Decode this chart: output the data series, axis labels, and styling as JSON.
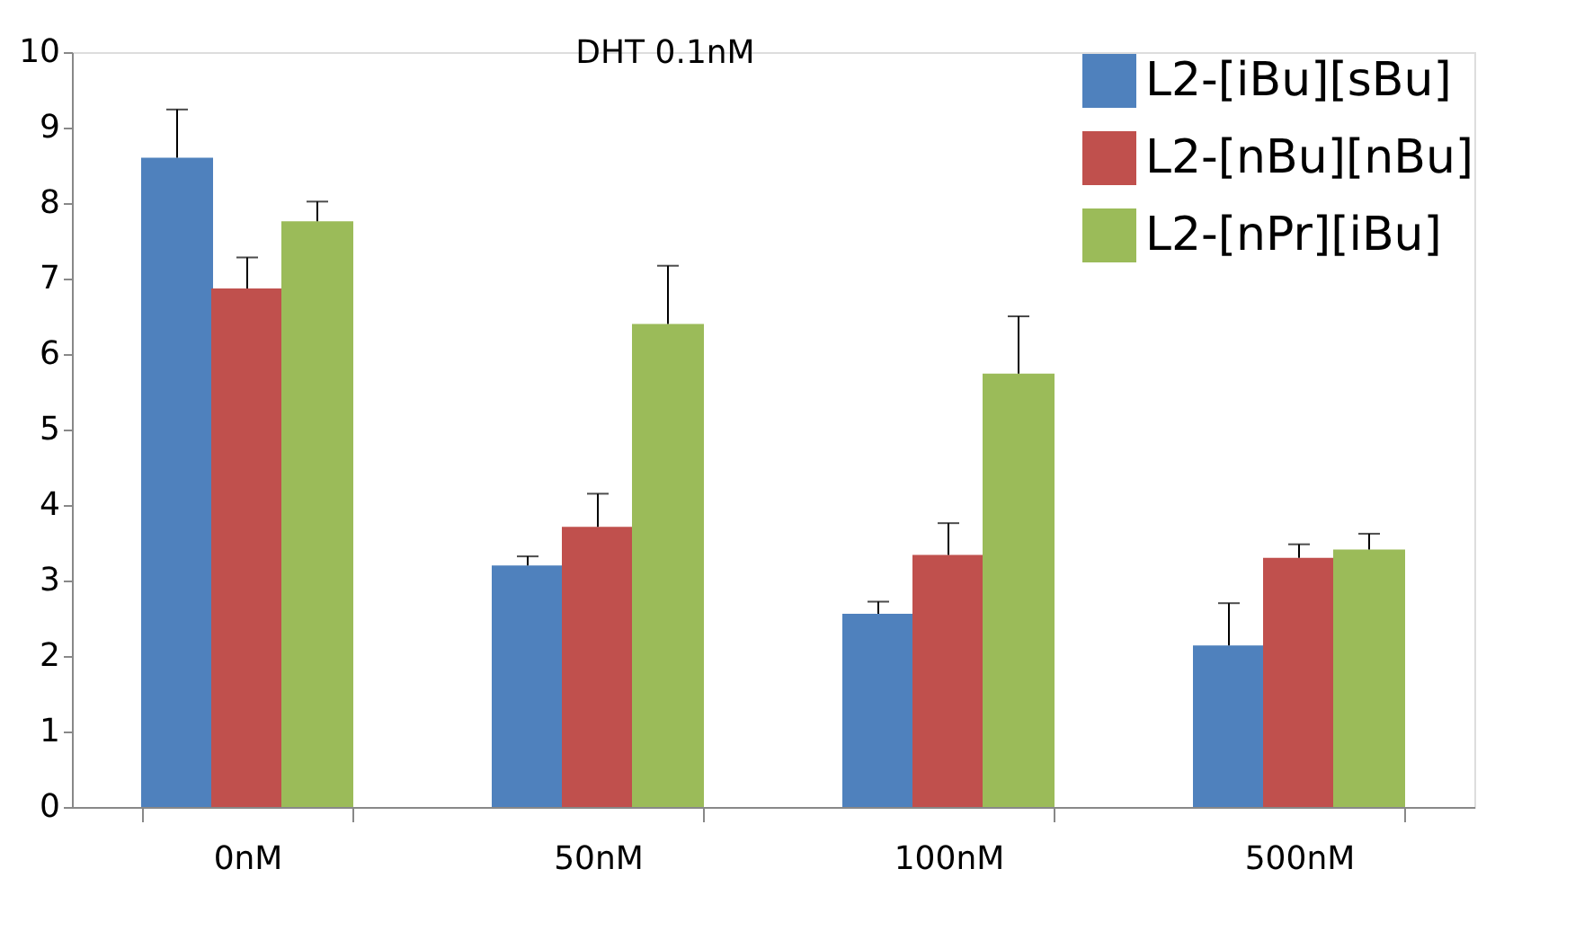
{
  "chart_data": {
    "type": "bar",
    "title": "DHT 0.1nM",
    "categories": [
      "0nM",
      "50nM",
      "100nM",
      "500nM"
    ],
    "series": [
      {
        "name": "L2-[iBu][sBu]",
        "color": "#4f81bd",
        "values": [
          8.6,
          3.2,
          2.56,
          2.14
        ],
        "errors": [
          [
            8.6,
            9.24
          ],
          [
            3.2,
            3.32
          ],
          [
            2.56,
            2.72
          ],
          [
            2.14,
            2.7
          ]
        ]
      },
      {
        "name": "L2-[nBu][nBu]",
        "color": "#c0504d",
        "values": [
          6.87,
          3.71,
          3.34,
          3.3
        ],
        "errors": [
          [
            6.87,
            7.28
          ],
          [
            3.71,
            4.15
          ],
          [
            3.34,
            3.76
          ],
          [
            3.3,
            3.48
          ]
        ]
      },
      {
        "name": "L2-[nPr][iBu]",
        "color": "#9bbb59",
        "values": [
          7.76,
          6.4,
          5.74,
          3.41
        ],
        "errors": [
          [
            7.76,
            8.02
          ],
          [
            6.4,
            7.17
          ],
          [
            5.74,
            6.5
          ],
          [
            3.41,
            3.62
          ]
        ]
      }
    ],
    "ylim": [
      0,
      10
    ],
    "yticks": [
      0,
      1,
      2,
      3,
      4,
      5,
      6,
      7,
      8,
      9,
      10
    ],
    "grid": false,
    "legend": "top right"
  }
}
